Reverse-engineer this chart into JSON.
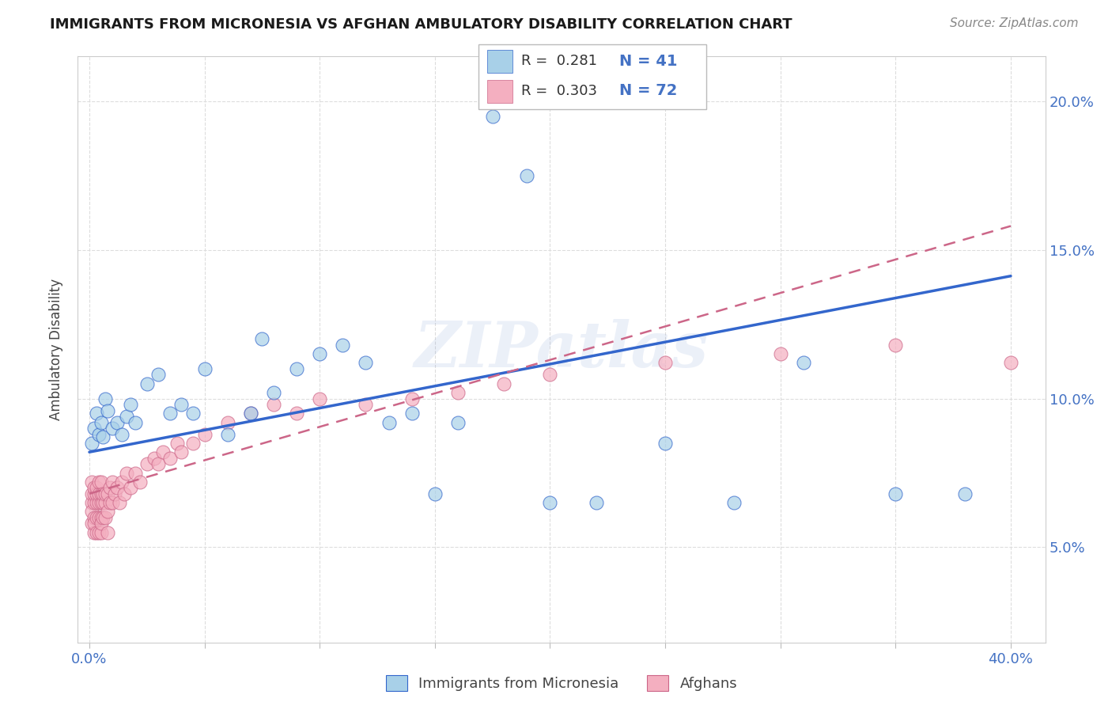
{
  "title": "IMMIGRANTS FROM MICRONESIA VS AFGHAN AMBULATORY DISABILITY CORRELATION CHART",
  "source_text": "Source: ZipAtlas.com",
  "ylabel": "Ambulatory Disability",
  "xlim": [
    -0.005,
    0.415
  ],
  "ylim": [
    0.018,
    0.215
  ],
  "xticks": [
    0.0,
    0.05,
    0.1,
    0.15,
    0.2,
    0.25,
    0.3,
    0.35,
    0.4
  ],
  "xticklabels": [
    "0.0%",
    "",
    "",
    "",
    "",
    "",
    "",
    "",
    "40.0%"
  ],
  "yticks": [
    0.05,
    0.1,
    0.15,
    0.2
  ],
  "yticklabels": [
    "5.0%",
    "10.0%",
    "15.0%",
    "20.0%"
  ],
  "watermark": "ZIPatlas",
  "blue_scatter_color": "#a8d0e8",
  "pink_scatter_color": "#f4afc0",
  "blue_line_color": "#3366cc",
  "pink_line_color": "#cc6688",
  "tick_color": "#4472c4",
  "grid_color": "#dddddd",
  "title_color": "#1a1a1a",
  "source_color": "#888888",
  "label_color": "#444444",
  "watermark_color": "#4472c4",
  "legend_label1": "Immigrants from Micronesia",
  "legend_label2": "Afghans",
  "mic_x": [
    0.001,
    0.002,
    0.003,
    0.004,
    0.005,
    0.006,
    0.007,
    0.008,
    0.01,
    0.012,
    0.014,
    0.016,
    0.018,
    0.02,
    0.025,
    0.03,
    0.035,
    0.04,
    0.045,
    0.05,
    0.06,
    0.07,
    0.075,
    0.08,
    0.09,
    0.1,
    0.11,
    0.12,
    0.13,
    0.14,
    0.15,
    0.16,
    0.175,
    0.19,
    0.2,
    0.22,
    0.25,
    0.28,
    0.31,
    0.35,
    0.38
  ],
  "mic_y": [
    0.085,
    0.09,
    0.095,
    0.088,
    0.092,
    0.087,
    0.1,
    0.096,
    0.09,
    0.092,
    0.088,
    0.094,
    0.098,
    0.092,
    0.105,
    0.108,
    0.095,
    0.098,
    0.095,
    0.11,
    0.088,
    0.095,
    0.12,
    0.102,
    0.11,
    0.115,
    0.118,
    0.112,
    0.092,
    0.095,
    0.068,
    0.092,
    0.195,
    0.175,
    0.065,
    0.065,
    0.085,
    0.065,
    0.112,
    0.068,
    0.068
  ],
  "afg_x": [
    0.001,
    0.001,
    0.001,
    0.001,
    0.001,
    0.002,
    0.002,
    0.002,
    0.002,
    0.002,
    0.002,
    0.003,
    0.003,
    0.003,
    0.003,
    0.003,
    0.004,
    0.004,
    0.004,
    0.004,
    0.004,
    0.005,
    0.005,
    0.005,
    0.005,
    0.005,
    0.005,
    0.006,
    0.006,
    0.006,
    0.007,
    0.007,
    0.007,
    0.008,
    0.008,
    0.008,
    0.009,
    0.009,
    0.01,
    0.01,
    0.011,
    0.012,
    0.013,
    0.014,
    0.015,
    0.016,
    0.018,
    0.02,
    0.022,
    0.025,
    0.028,
    0.03,
    0.032,
    0.035,
    0.038,
    0.04,
    0.045,
    0.05,
    0.06,
    0.07,
    0.08,
    0.09,
    0.1,
    0.12,
    0.14,
    0.16,
    0.18,
    0.2,
    0.25,
    0.3,
    0.35,
    0.4
  ],
  "afg_y": [
    0.065,
    0.068,
    0.072,
    0.058,
    0.062,
    0.065,
    0.06,
    0.068,
    0.055,
    0.07,
    0.058,
    0.065,
    0.06,
    0.068,
    0.055,
    0.07,
    0.065,
    0.06,
    0.068,
    0.055,
    0.072,
    0.065,
    0.06,
    0.068,
    0.055,
    0.072,
    0.058,
    0.065,
    0.06,
    0.068,
    0.065,
    0.06,
    0.068,
    0.062,
    0.068,
    0.055,
    0.065,
    0.07,
    0.065,
    0.072,
    0.068,
    0.07,
    0.065,
    0.072,
    0.068,
    0.075,
    0.07,
    0.075,
    0.072,
    0.078,
    0.08,
    0.078,
    0.082,
    0.08,
    0.085,
    0.082,
    0.085,
    0.088,
    0.092,
    0.095,
    0.098,
    0.095,
    0.1,
    0.098,
    0.1,
    0.102,
    0.105,
    0.108,
    0.112,
    0.115,
    0.118,
    0.112
  ]
}
